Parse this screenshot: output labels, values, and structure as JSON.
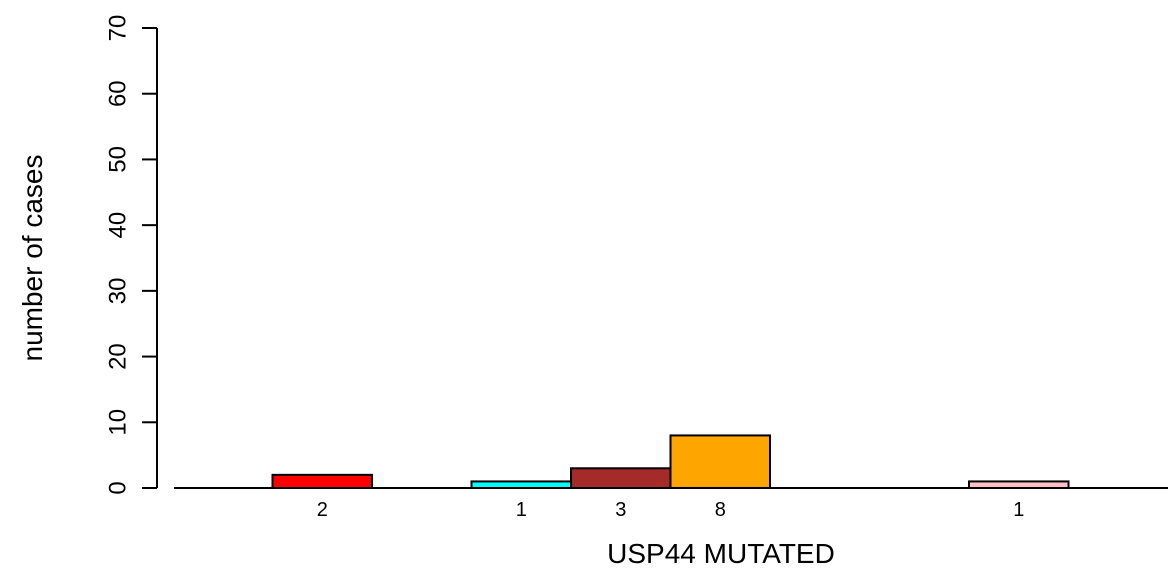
{
  "chart_data": {
    "type": "bar",
    "xlabel": "USP44 MUTATED",
    "ylabel": "number of cases",
    "ylim": [
      0,
      70
    ],
    "yticks": [
      0,
      10,
      20,
      30,
      40,
      50,
      60,
      70
    ],
    "grid": false,
    "legend": "none",
    "slots": 9,
    "bars": [
      {
        "slot": 1,
        "value": 2,
        "label": "2",
        "color": "#ff0000"
      },
      {
        "slot": 3,
        "value": 1,
        "label": "1",
        "color": "#00ffff"
      },
      {
        "slot": 4,
        "value": 3,
        "label": "3",
        "color": "#a52a2a"
      },
      {
        "slot": 5,
        "value": 8,
        "label": "8",
        "color": "#ffa500"
      },
      {
        "slot": 8,
        "value": 1,
        "label": "1",
        "color": "#ffc0cb"
      }
    ]
  }
}
